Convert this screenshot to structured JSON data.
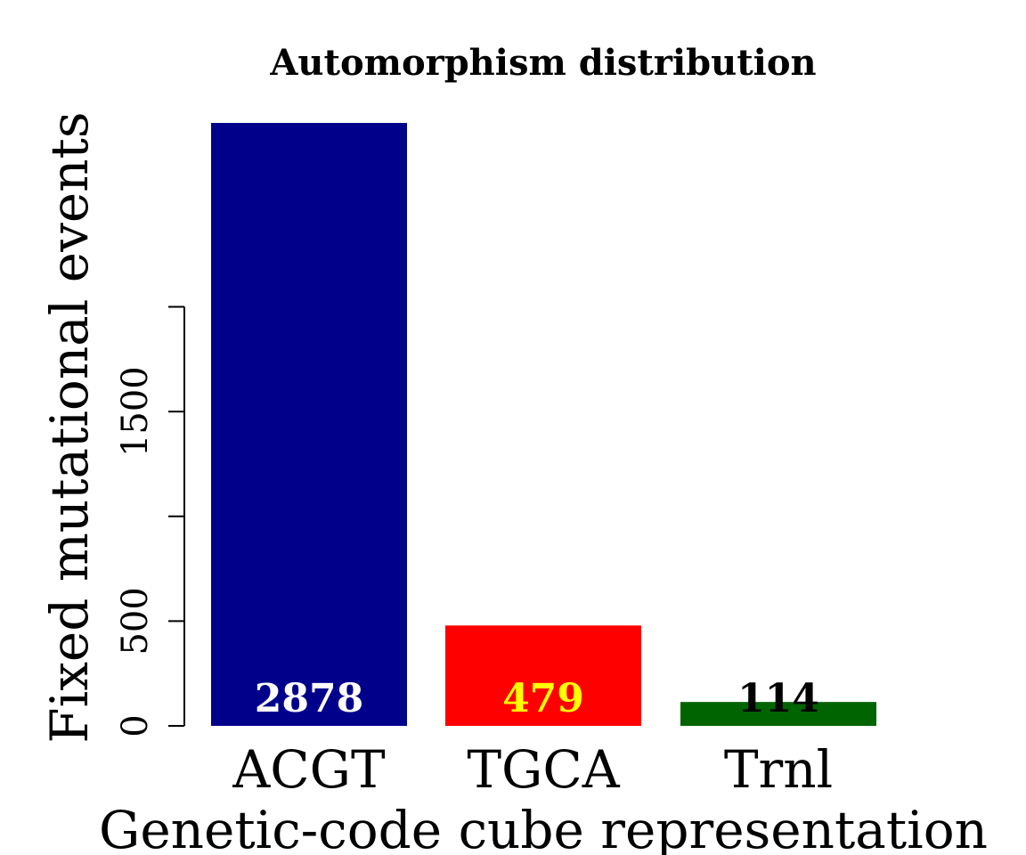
{
  "chart_data": {
    "type": "bar",
    "title": "Automorphism distribution",
    "xlabel": "Genetic-code cube representation",
    "ylabel": "Fixed mutational events",
    "categories": [
      "ACGT",
      "TGCA",
      "Trnl"
    ],
    "values": [
      2878,
      479,
      114
    ],
    "data_labels": [
      "2878",
      "479",
      "114"
    ],
    "bar_colors": [
      "#00008B",
      "#FF0000",
      "#006400"
    ],
    "label_colors": [
      "#FFFFFF",
      "#FFFF00",
      "#000000"
    ],
    "yticks": [
      0,
      500,
      1000,
      1500,
      2000
    ],
    "ytick_labels": [
      "0",
      "500",
      "",
      "1500",
      ""
    ],
    "ylim": [
      0,
      2878
    ],
    "grid": false,
    "legend": "none"
  }
}
